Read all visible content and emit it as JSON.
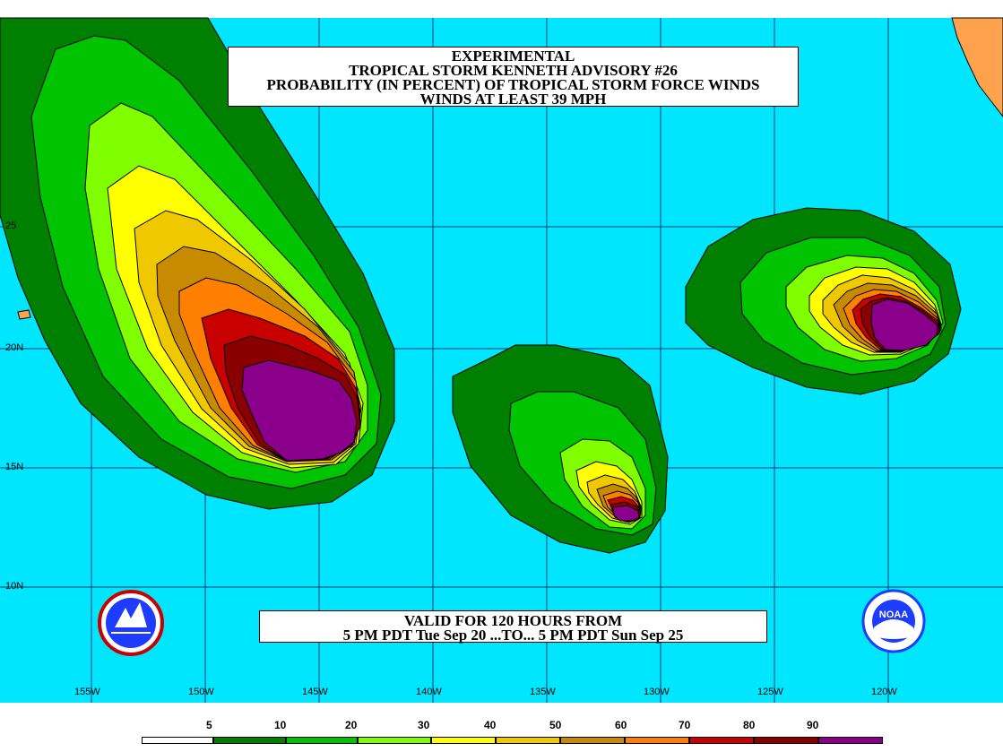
{
  "title": {
    "line1": "EXPERIMENTAL",
    "line2": "TROPICAL STORM KENNETH ADVISORY #26",
    "line3": "PROBABILITY (IN PERCENT) OF TROPICAL STORM FORCE WINDS",
    "line4": "WINDS AT LEAST 39 MPH"
  },
  "valid": {
    "line1": "VALID FOR 120 HOURS FROM",
    "line2": "5 PM PDT Tue Sep 20 ...TO... 5 PM PDT Sun Sep 25"
  },
  "axes": {
    "longitude": [
      "155W",
      "150W",
      "145W",
      "140W",
      "135W",
      "130W",
      "125W",
      "120W"
    ],
    "latitude": [
      "25",
      "20N",
      "15N",
      "10N"
    ]
  },
  "legend": {
    "labels": [
      "5",
      "10",
      "20",
      "30",
      "40",
      "50",
      "60",
      "70",
      "80",
      "90"
    ],
    "colors": [
      "#ffffff",
      "#008000",
      "#00c400",
      "#80ff00",
      "#ffff00",
      "#f0c800",
      "#c88a00",
      "#ff8000",
      "#c80000",
      "#8a0000",
      "#8a008a"
    ]
  },
  "colors": {
    "ocean": "#00e6ff",
    "land": "#ffa24e",
    "grid": "#0a3c78"
  },
  "icons": {
    "left_logo": "nws-logo-icon",
    "right_logo": "noaa-logo-icon",
    "right_logo_text": "NOAA"
  }
}
